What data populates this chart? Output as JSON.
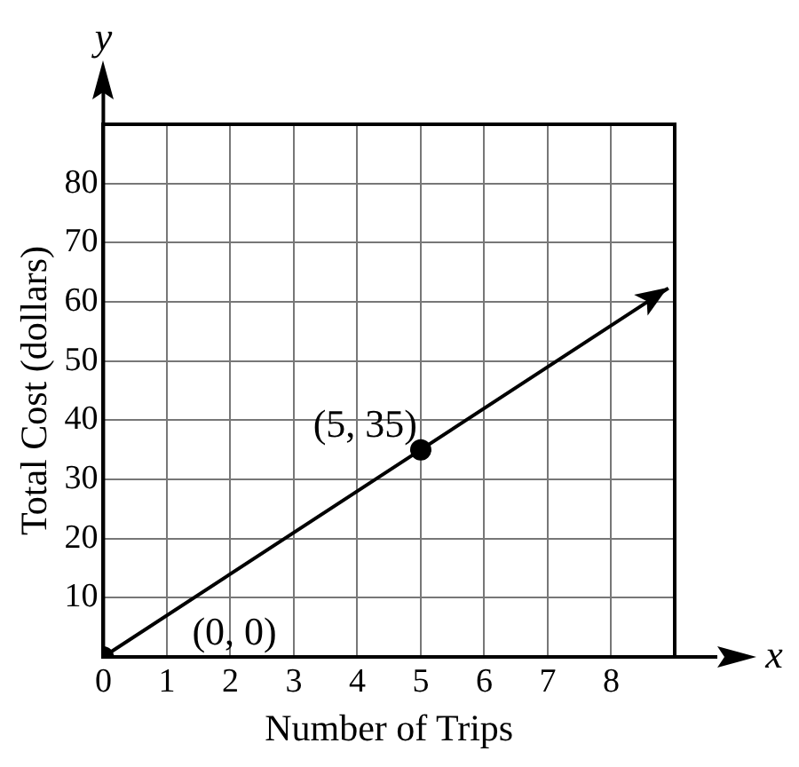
{
  "chart_data": {
    "type": "line",
    "xlabel": "Number of Trips",
    "ylabel": "Total Cost (dollars)",
    "x": [
      0,
      5,
      8.9
    ],
    "series": [
      {
        "color": "#000000",
        "values": [
          0,
          35,
          62.3
        ]
      }
    ],
    "xlim": [
      0,
      9
    ],
    "ylim": [
      0,
      90
    ],
    "xticks": [
      0,
      1,
      2,
      3,
      4,
      5,
      6,
      7,
      8
    ],
    "yticks": [
      10,
      20,
      30,
      40,
      50,
      60,
      70,
      80
    ],
    "grid": true,
    "legend": false,
    "marker": "circle",
    "line_style": "solid",
    "annotations": [
      {
        "text": "(5, 35)",
        "x": 5,
        "y": 35
      },
      {
        "text": "(0, 0)",
        "x": 0,
        "y": 0
      },
      "x",
      "y"
    ]
  }
}
